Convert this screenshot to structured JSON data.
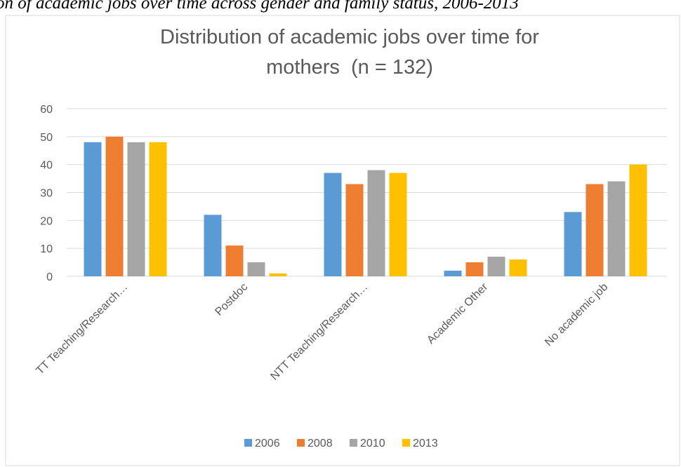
{
  "caption": "on of academic jobs over time across gender and family status, 2006-2013",
  "chart_data": {
    "type": "bar",
    "title": "Distribution of academic jobs over time for mothers  (n = 132)",
    "categories": [
      "TT Teaching/Research…",
      "Postdoc",
      "NTT Teaching/Research…",
      "Academic Other",
      "No academic job"
    ],
    "series": [
      {
        "name": "2006",
        "color": "#5b9bd5",
        "values": [
          48,
          22,
          37,
          2,
          23
        ]
      },
      {
        "name": "2008",
        "color": "#ed7d31",
        "values": [
          50,
          11,
          33,
          5,
          33
        ]
      },
      {
        "name": "2010",
        "color": "#a5a5a5",
        "values": [
          48,
          5,
          38,
          7,
          34
        ]
      },
      {
        "name": "2013",
        "color": "#ffc000",
        "values": [
          48,
          1,
          37,
          6,
          40
        ]
      }
    ],
    "ylim": [
      0,
      60
    ],
    "yticks": [
      0,
      10,
      20,
      30,
      40,
      50,
      60
    ],
    "grid": true,
    "legend": "bottom"
  }
}
